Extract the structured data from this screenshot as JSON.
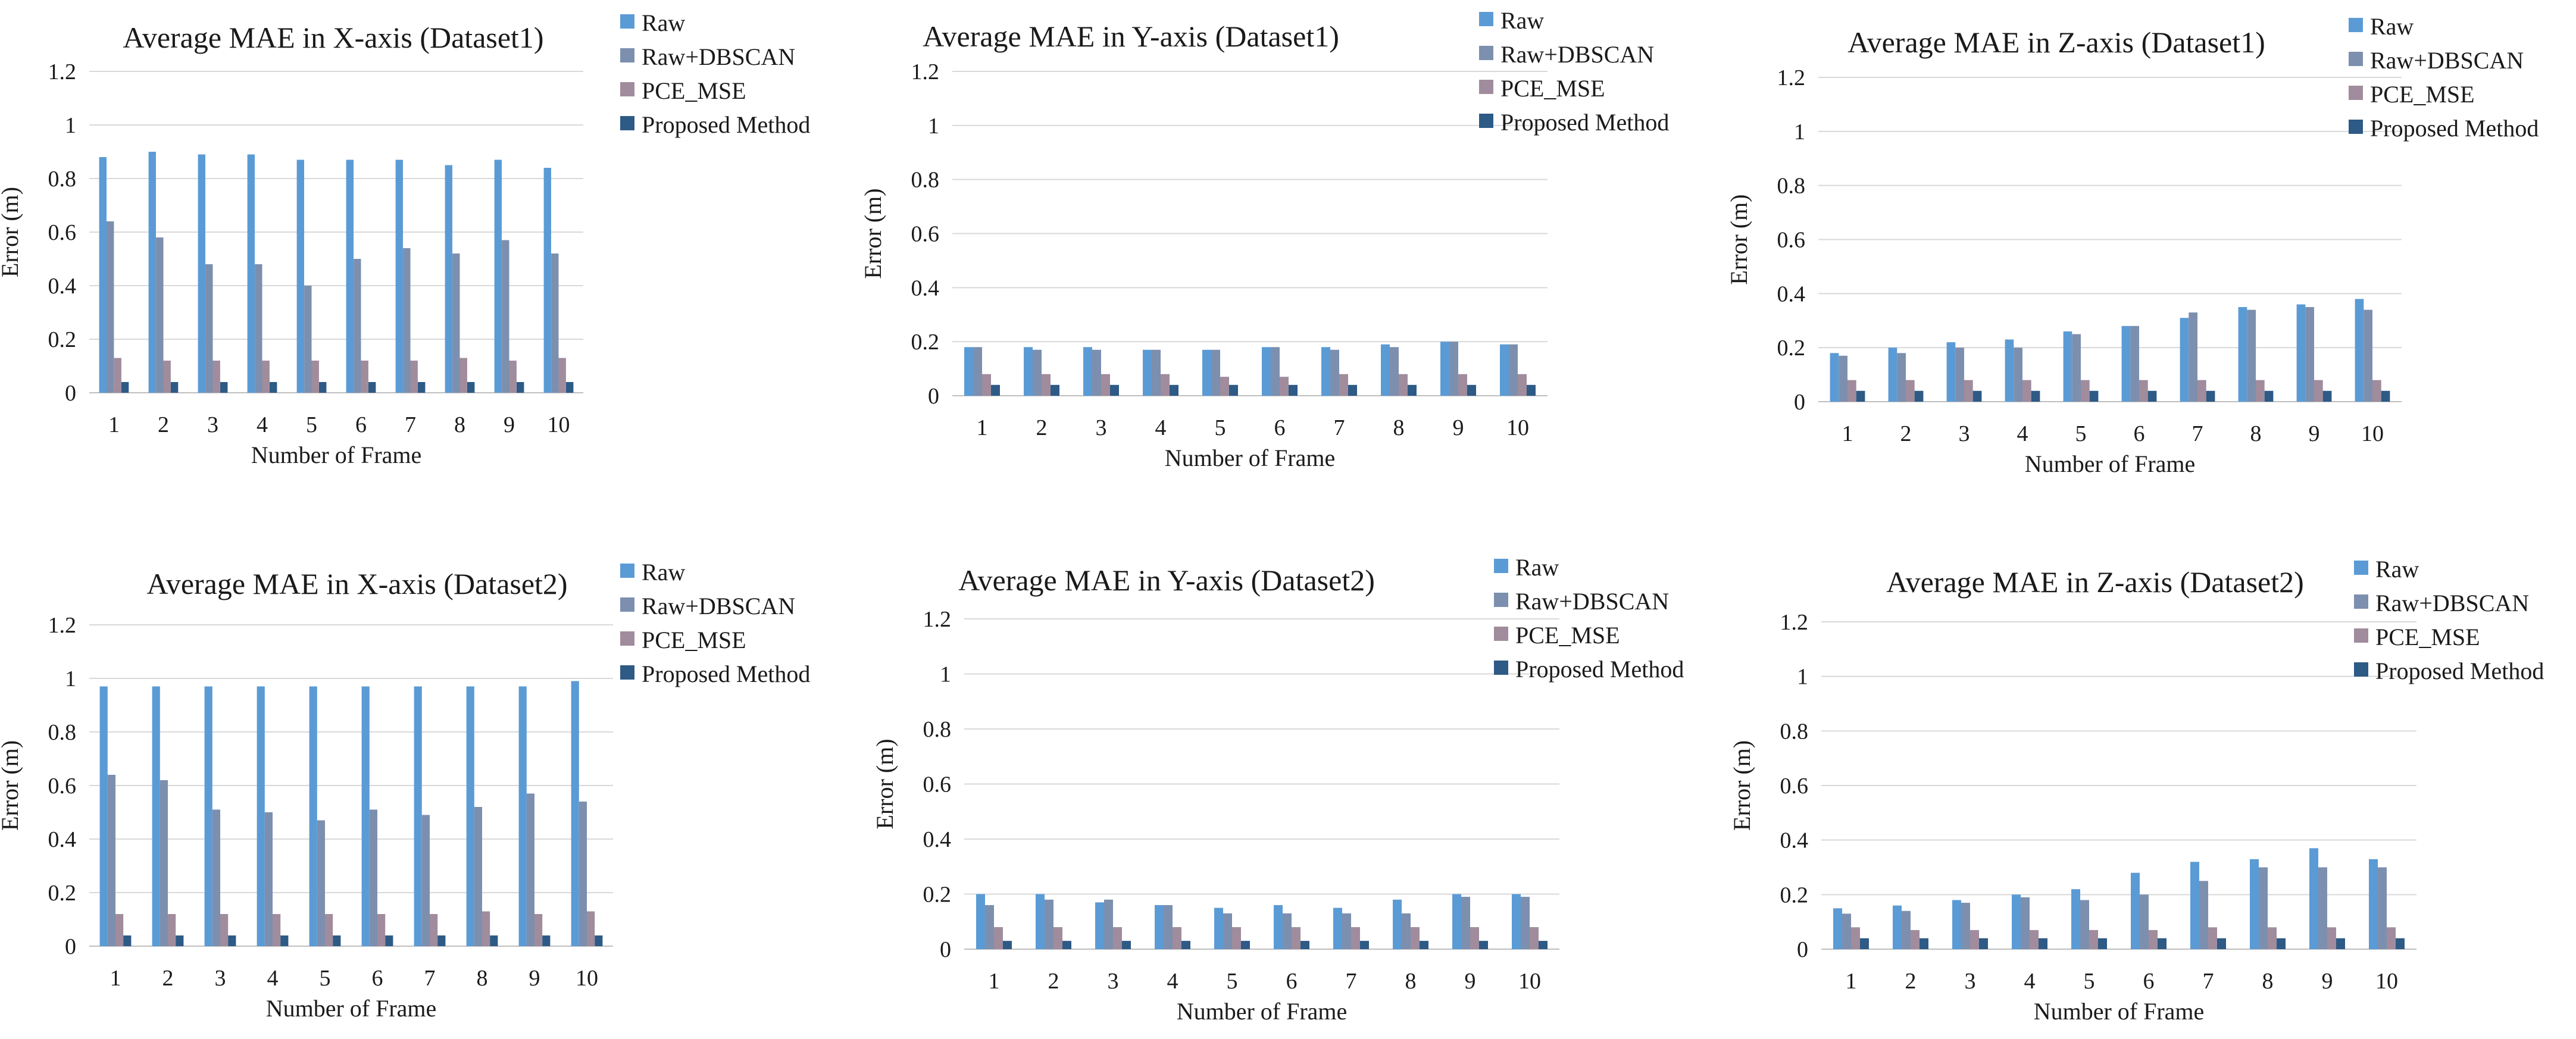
{
  "colors": {
    "Raw": "#5b9bd5",
    "Raw+DBSCAN": "#7c8fae",
    "PCE_MSE": "#a08c9c",
    "Proposed Method": "#2e5a86"
  },
  "chart_data": [
    {
      "type": "bar",
      "title": "Average MAE in X-axis (Dataset1)",
      "xlabel": "Number of Frame",
      "ylabel": "Error (m)",
      "ylim": [
        0,
        1.2
      ],
      "yticks": [
        "0",
        "0.2",
        "0.4",
        "0.6",
        "0.8",
        "1",
        "1.2"
      ],
      "categories": [
        "1",
        "2",
        "3",
        "4",
        "5",
        "6",
        "7",
        "8",
        "9",
        "10"
      ],
      "legend": "top-right",
      "series": [
        {
          "name": "Raw",
          "values": [
            0.88,
            0.9,
            0.89,
            0.89,
            0.87,
            0.87,
            0.87,
            0.85,
            0.87,
            0.84
          ]
        },
        {
          "name": "Raw+DBSCAN",
          "values": [
            0.64,
            0.58,
            0.48,
            0.48,
            0.4,
            0.5,
            0.54,
            0.52,
            0.57,
            0.52
          ]
        },
        {
          "name": "PCE_MSE",
          "values": [
            0.13,
            0.12,
            0.12,
            0.12,
            0.12,
            0.12,
            0.12,
            0.13,
            0.12,
            0.13
          ]
        },
        {
          "name": "Proposed Method",
          "values": [
            0.04,
            0.04,
            0.04,
            0.04,
            0.04,
            0.04,
            0.04,
            0.04,
            0.04,
            0.04
          ]
        }
      ]
    },
    {
      "type": "bar",
      "title": "Average MAE in Y-axis (Dataset1)",
      "xlabel": "Number of Frame",
      "ylabel": "Error (m)",
      "ylim": [
        0,
        1.2
      ],
      "yticks": [
        "0",
        "0.2",
        "0.4",
        "0.6",
        "0.8",
        "1",
        "1.2"
      ],
      "categories": [
        "1",
        "2",
        "3",
        "4",
        "5",
        "6",
        "7",
        "8",
        "9",
        "10"
      ],
      "legend": "top-right",
      "series": [
        {
          "name": "Raw",
          "values": [
            0.18,
            0.18,
            0.18,
            0.17,
            0.17,
            0.18,
            0.18,
            0.19,
            0.2,
            0.19
          ]
        },
        {
          "name": "Raw+DBSCAN",
          "values": [
            0.18,
            0.17,
            0.17,
            0.17,
            0.17,
            0.18,
            0.17,
            0.18,
            0.2,
            0.19
          ]
        },
        {
          "name": "PCE_MSE",
          "values": [
            0.08,
            0.08,
            0.08,
            0.08,
            0.07,
            0.07,
            0.08,
            0.08,
            0.08,
            0.08
          ]
        },
        {
          "name": "Proposed Method",
          "values": [
            0.04,
            0.04,
            0.04,
            0.04,
            0.04,
            0.04,
            0.04,
            0.04,
            0.04,
            0.04
          ]
        }
      ]
    },
    {
      "type": "bar",
      "title": "Average MAE in Z-axis (Dataset1)",
      "xlabel": "Number of Frame",
      "ylabel": "Error (m)",
      "ylim": [
        0,
        1.2
      ],
      "yticks": [
        "0",
        "0.2",
        "0.4",
        "0.6",
        "0.8",
        "1",
        "1.2"
      ],
      "categories": [
        "1",
        "2",
        "3",
        "4",
        "5",
        "6",
        "7",
        "8",
        "9",
        "10"
      ],
      "legend": "top-right",
      "series": [
        {
          "name": "Raw",
          "values": [
            0.18,
            0.2,
            0.22,
            0.23,
            0.26,
            0.28,
            0.31,
            0.35,
            0.36,
            0.38
          ]
        },
        {
          "name": "Raw+DBSCAN",
          "values": [
            0.17,
            0.18,
            0.2,
            0.2,
            0.25,
            0.28,
            0.33,
            0.34,
            0.35,
            0.34
          ]
        },
        {
          "name": "PCE_MSE",
          "values": [
            0.08,
            0.08,
            0.08,
            0.08,
            0.08,
            0.08,
            0.08,
            0.08,
            0.08,
            0.08
          ]
        },
        {
          "name": "Proposed Method",
          "values": [
            0.04,
            0.04,
            0.04,
            0.04,
            0.04,
            0.04,
            0.04,
            0.04,
            0.04,
            0.04
          ]
        }
      ]
    },
    {
      "type": "bar",
      "title": "Average MAE in X-axis (Dataset2)",
      "xlabel": "Number of Frame",
      "ylabel": "Error (m)",
      "ylim": [
        0,
        1.2
      ],
      "yticks": [
        "0",
        "0.2",
        "0.4",
        "0.6",
        "0.8",
        "1",
        "1.2"
      ],
      "categories": [
        "1",
        "2",
        "3",
        "4",
        "5",
        "6",
        "7",
        "8",
        "9",
        "10"
      ],
      "legend": "top-right",
      "series": [
        {
          "name": "Raw",
          "values": [
            0.97,
            0.97,
            0.97,
            0.97,
            0.97,
            0.97,
            0.97,
            0.97,
            0.97,
            0.99
          ]
        },
        {
          "name": "Raw+DBSCAN",
          "values": [
            0.64,
            0.62,
            0.51,
            0.5,
            0.47,
            0.51,
            0.49,
            0.52,
            0.57,
            0.54
          ]
        },
        {
          "name": "PCE_MSE",
          "values": [
            0.12,
            0.12,
            0.12,
            0.12,
            0.12,
            0.12,
            0.12,
            0.13,
            0.12,
            0.13
          ]
        },
        {
          "name": "Proposed Method",
          "values": [
            0.04,
            0.04,
            0.04,
            0.04,
            0.04,
            0.04,
            0.04,
            0.04,
            0.04,
            0.04
          ]
        }
      ]
    },
    {
      "type": "bar",
      "title": "Average MAE in Y-axis (Dataset2)",
      "xlabel": "Number of Frame",
      "ylabel": "Error (m)",
      "ylim": [
        0,
        1.2
      ],
      "yticks": [
        "0",
        "0.2",
        "0.4",
        "0.6",
        "0.8",
        "1",
        "1.2"
      ],
      "categories": [
        "1",
        "2",
        "3",
        "4",
        "5",
        "6",
        "7",
        "8",
        "9",
        "10"
      ],
      "legend": "top-right",
      "series": [
        {
          "name": "Raw",
          "values": [
            0.2,
            0.2,
            0.17,
            0.16,
            0.15,
            0.16,
            0.15,
            0.18,
            0.2,
            0.2
          ]
        },
        {
          "name": "Raw+DBSCAN",
          "values": [
            0.16,
            0.18,
            0.18,
            0.16,
            0.13,
            0.13,
            0.13,
            0.13,
            0.19,
            0.19
          ]
        },
        {
          "name": "PCE_MSE",
          "values": [
            0.08,
            0.08,
            0.08,
            0.08,
            0.08,
            0.08,
            0.08,
            0.08,
            0.08,
            0.08
          ]
        },
        {
          "name": "Proposed Method",
          "values": [
            0.03,
            0.03,
            0.03,
            0.03,
            0.03,
            0.03,
            0.03,
            0.03,
            0.03,
            0.03
          ]
        }
      ]
    },
    {
      "type": "bar",
      "title": "Average MAE in Z-axis (Dataset2)",
      "xlabel": "Number of Frame",
      "ylabel": "Error (m)",
      "ylim": [
        0,
        1.2
      ],
      "yticks": [
        "0",
        "0.2",
        "0.4",
        "0.6",
        "0.8",
        "1",
        "1.2"
      ],
      "categories": [
        "1",
        "2",
        "3",
        "4",
        "5",
        "6",
        "7",
        "8",
        "9",
        "10"
      ],
      "legend": "top-right",
      "series": [
        {
          "name": "Raw",
          "values": [
            0.15,
            0.16,
            0.18,
            0.2,
            0.22,
            0.28,
            0.32,
            0.33,
            0.37,
            0.33
          ]
        },
        {
          "name": "Raw+DBSCAN",
          "values": [
            0.13,
            0.14,
            0.17,
            0.19,
            0.18,
            0.2,
            0.25,
            0.3,
            0.3,
            0.3
          ]
        },
        {
          "name": "PCE_MSE",
          "values": [
            0.08,
            0.07,
            0.07,
            0.07,
            0.07,
            0.07,
            0.08,
            0.08,
            0.08,
            0.08
          ]
        },
        {
          "name": "Proposed Method",
          "values": [
            0.04,
            0.04,
            0.04,
            0.04,
            0.04,
            0.04,
            0.04,
            0.04,
            0.04,
            0.04
          ]
        }
      ]
    }
  ]
}
